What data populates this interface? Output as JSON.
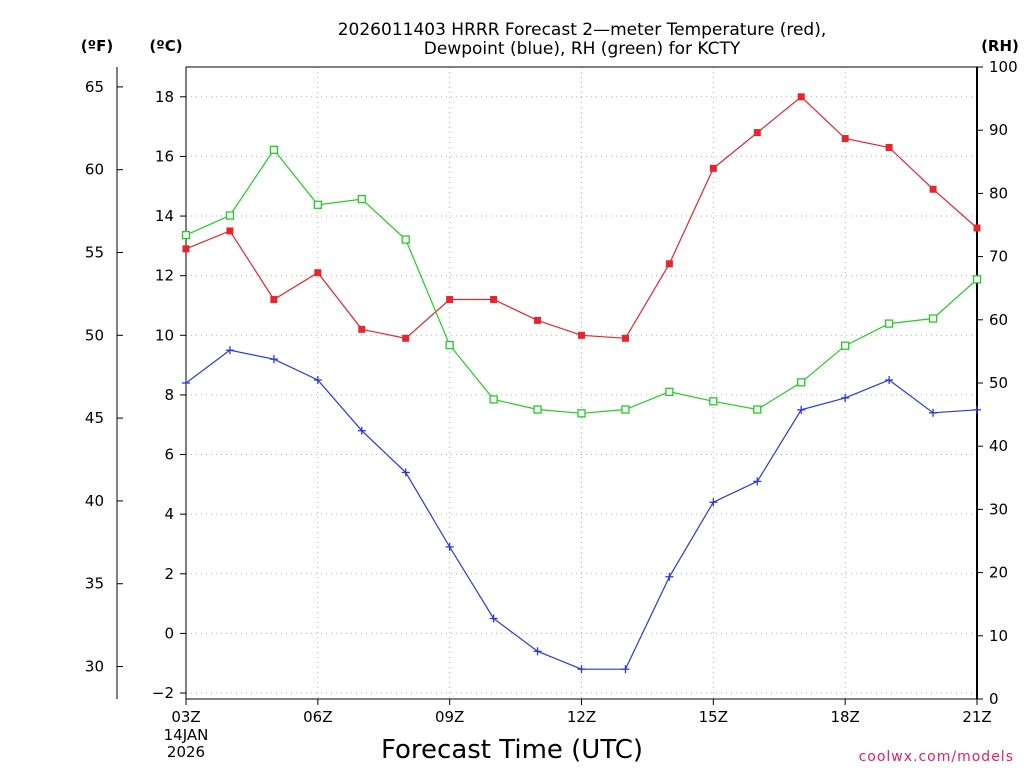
{
  "chart_data": {
    "type": "line",
    "title_lines": [
      "2026011403 HRRR Forecast 2—meter Temperature (red),",
      "Dewpoint (blue), RH (green) for KCTY"
    ],
    "units": {
      "fahrenheit": "(ºF)",
      "celsius": "(ºC)",
      "rh": "(RH)"
    },
    "xlabel": "Forecast Time (UTC)",
    "x_ticks": [
      "03Z",
      "06Z",
      "09Z",
      "12Z",
      "15Z",
      "18Z",
      "21Z"
    ],
    "x_date_label": [
      "14JAN",
      "2026"
    ],
    "y_celsius_ticks": [
      "−2",
      "0",
      "2",
      "4",
      "6",
      "8",
      "10",
      "12",
      "14",
      "16",
      "18"
    ],
    "y_fahrenheit_ticks": [
      "30",
      "35",
      "40",
      "45",
      "50",
      "55",
      "60",
      "65"
    ],
    "y_rh_ticks": [
      "0",
      "10",
      "20",
      "30",
      "40",
      "50",
      "60",
      "70",
      "80",
      "90",
      "100"
    ],
    "credit": "coolwx.com/models",
    "x_hours": [
      3,
      4,
      5,
      6,
      7,
      8,
      9,
      10,
      11,
      12,
      13,
      14,
      15,
      16,
      17,
      18,
      19,
      20,
      21
    ],
    "celsius_range": [
      -2.2,
      19.0
    ],
    "rh_range": [
      0,
      100
    ],
    "series": [
      {
        "key": "temperature",
        "color": "#e8242c",
        "marker": "filled-square",
        "axis": "celsius",
        "values": [
          12.9,
          13.5,
          11.2,
          12.1,
          10.2,
          9.9,
          11.2,
          11.2,
          10.5,
          10.0,
          9.9,
          12.4,
          15.6,
          16.8,
          18.0,
          16.6,
          16.3,
          14.9,
          13.6
        ]
      },
      {
        "key": "dewpoint",
        "color": "#2838e0",
        "marker": "plus",
        "axis": "celsius",
        "values": [
          8.4,
          9.5,
          9.2,
          8.5,
          6.8,
          5.4,
          2.9,
          0.5,
          -0.6,
          -1.2,
          -1.2,
          1.9,
          4.4,
          5.1,
          7.5,
          7.9,
          8.5,
          7.4,
          7.5
        ]
      },
      {
        "key": "rh",
        "color": "#22cc22",
        "marker": "open-square",
        "axis": "rh",
        "values": [
          73.4,
          76.5,
          86.9,
          78.2,
          79.1,
          72.7,
          56.0,
          47.4,
          45.8,
          45.2,
          45.8,
          48.6,
          47.1,
          45.8,
          50.1,
          55.9,
          59.4,
          60.2,
          66.4
        ]
      }
    ]
  }
}
